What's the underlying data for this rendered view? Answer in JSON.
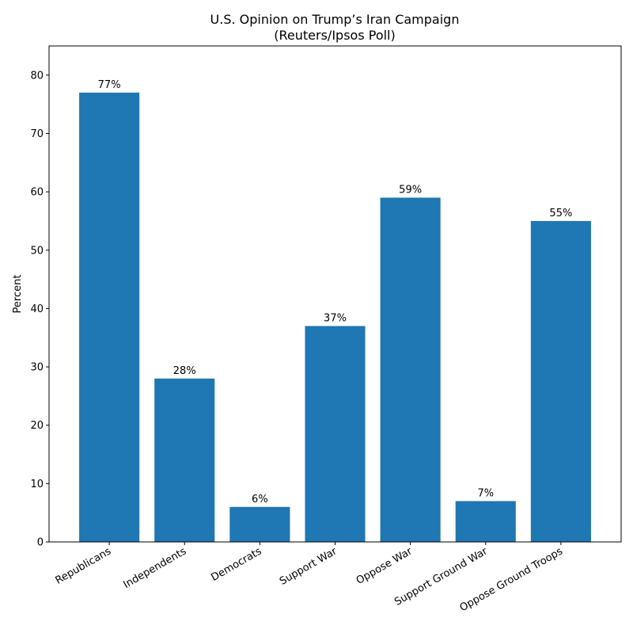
{
  "chart_data": {
    "type": "bar",
    "title_line1": "U.S. Opinion on Trump’s Iran Campaign",
    "title_line2": "(Reuters/Ipsos Poll)",
    "xlabel": "",
    "ylabel": "Percent",
    "ylim": [
      0,
      85
    ],
    "yticks": [
      0,
      10,
      20,
      30,
      40,
      50,
      60,
      70,
      80
    ],
    "categories": [
      "Republicans",
      "Independents",
      "Democrats",
      "Support War",
      "Oppose War",
      "Support Ground War",
      "Oppose Ground Troops"
    ],
    "values": [
      77,
      28,
      6,
      37,
      59,
      7,
      55
    ],
    "value_labels": [
      "77%",
      "28%",
      "6%",
      "37%",
      "59%",
      "7%",
      "55%"
    ],
    "bar_color": "#1f77b4",
    "grid": false
  }
}
